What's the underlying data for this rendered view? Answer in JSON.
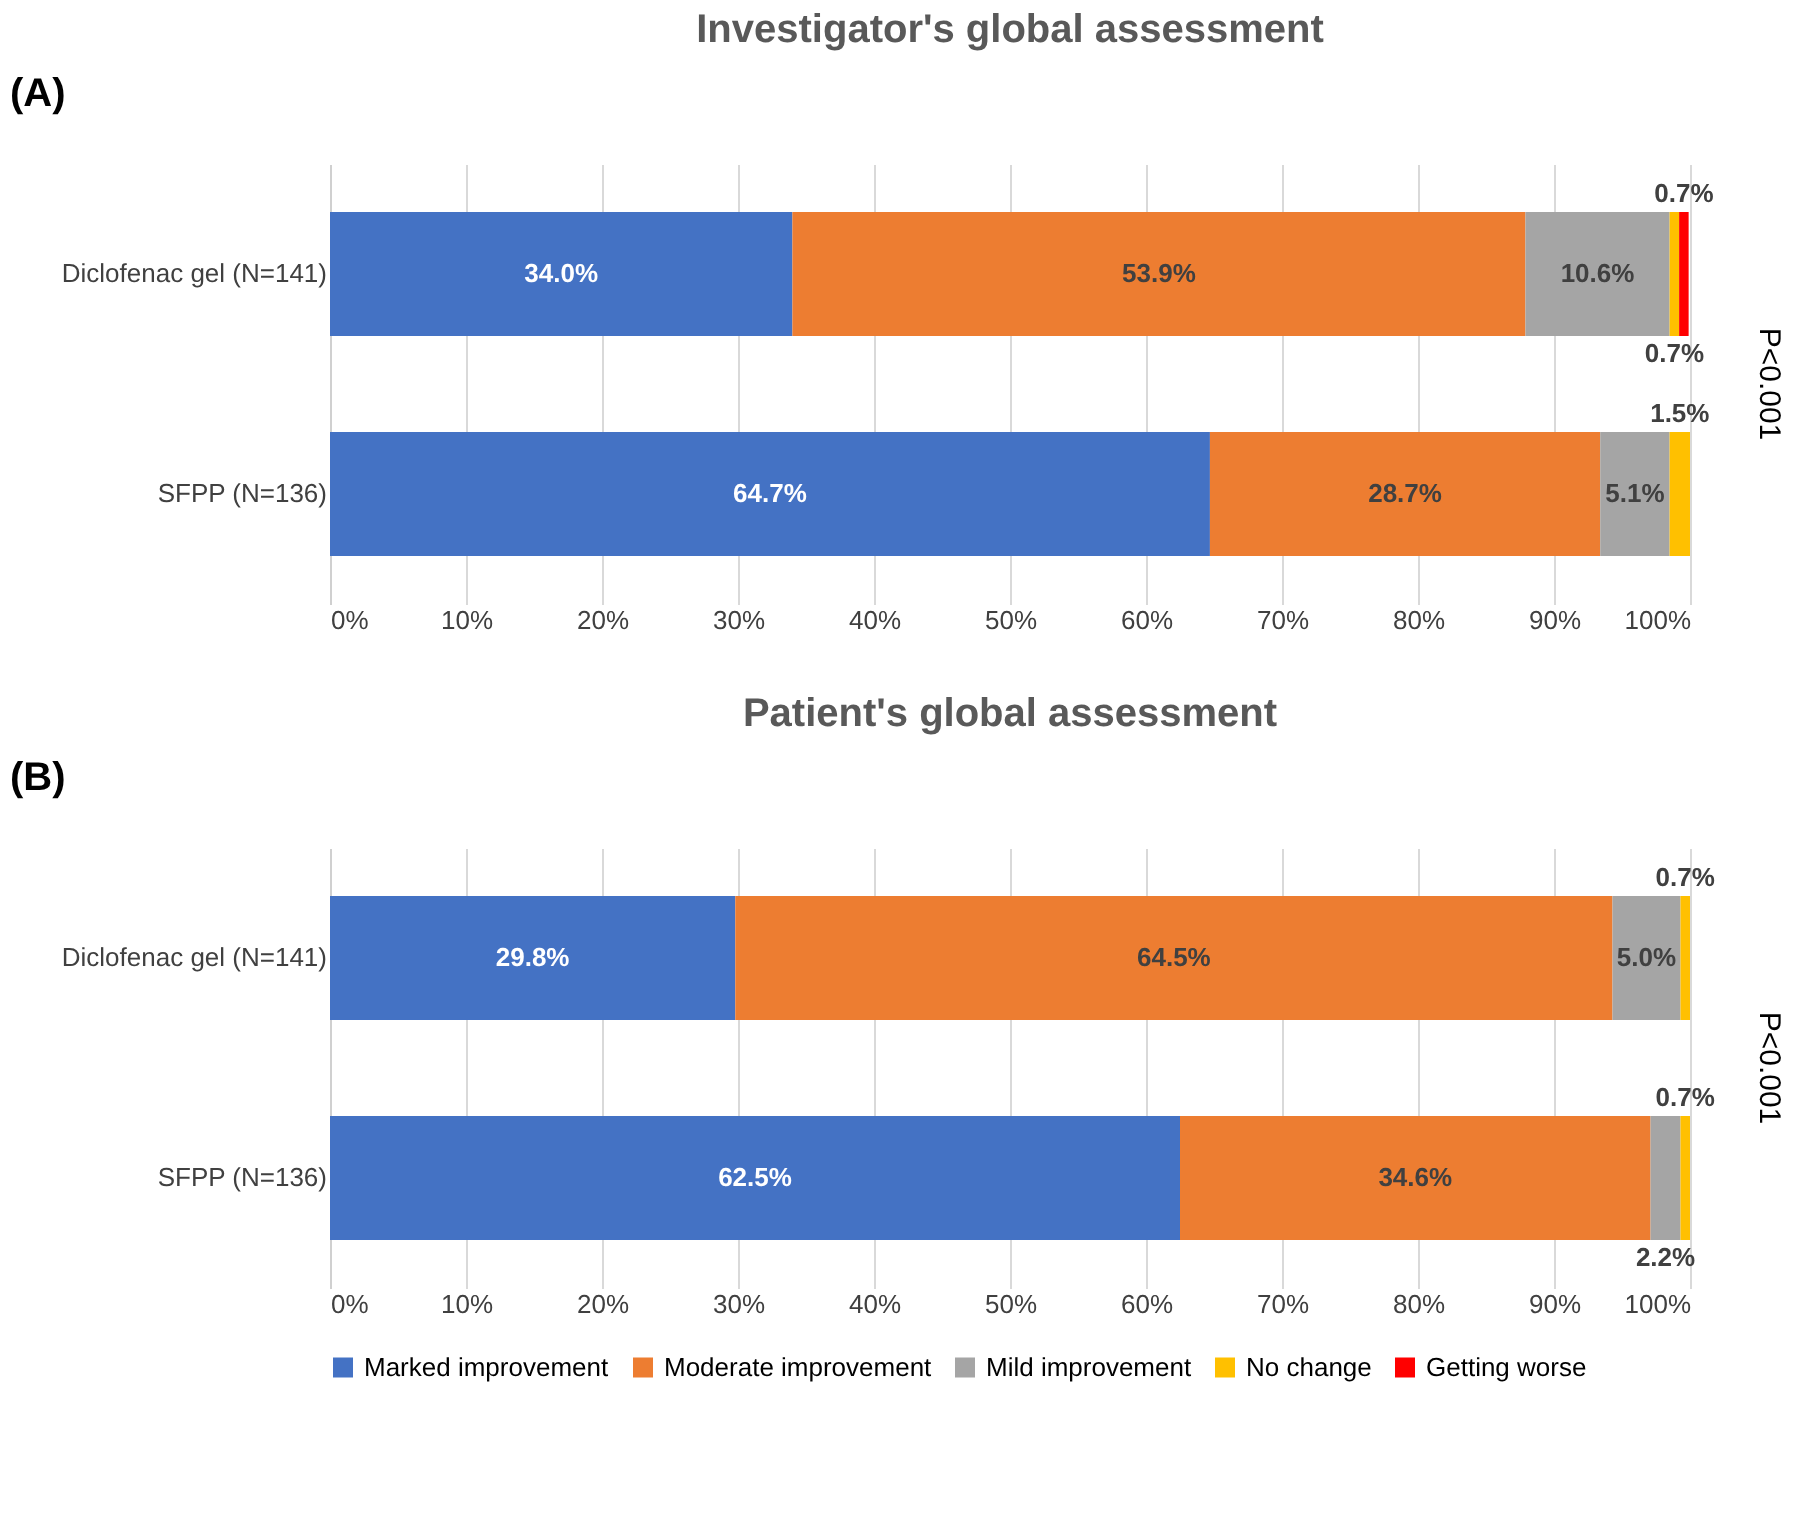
{
  "chart_data": [
    {
      "type": "bar",
      "orientation": "horizontal",
      "stacked": true,
      "title": "Investigator's global assessment",
      "categories": [
        "Diclofenac gel (N=141)",
        "SFPP (N=136)"
      ],
      "xlim": [
        0,
        100
      ],
      "xticks": [
        {
          "value": 0,
          "label": "0%"
        },
        {
          "value": 10,
          "label": "10%"
        },
        {
          "value": 20,
          "label": "20%"
        },
        {
          "value": 30,
          "label": "30%"
        },
        {
          "value": 40,
          "label": "40%"
        },
        {
          "value": 50,
          "label": "50%"
        },
        {
          "value": 60,
          "label": "60%"
        },
        {
          "value": 70,
          "label": "70%"
        },
        {
          "value": 80,
          "label": "80%"
        },
        {
          "value": 90,
          "label": "90%"
        },
        {
          "value": 100,
          "label": "100%"
        }
      ],
      "grid": "x",
      "legend": false,
      "annotations": [
        "(A)",
        "P<0.001"
      ],
      "series": [
        {
          "color": "#4472c4",
          "values": [
            34.0,
            64.7
          ],
          "value_labels": [
            "34.0%",
            "64.7%"
          ]
        },
        {
          "color": "#ed7d31",
          "values": [
            53.9,
            28.7
          ],
          "value_labels": [
            "53.9%",
            "28.7%"
          ]
        },
        {
          "color": "#a5a5a5",
          "values": [
            10.6,
            5.1
          ],
          "value_labels": [
            "10.6%",
            "5.1%"
          ]
        },
        {
          "color": "#ffc000",
          "values": [
            0.7,
            1.5
          ],
          "value_labels": [
            "0.7%",
            "1.5%"
          ]
        },
        {
          "color": "#ff0000",
          "values": [
            0.7,
            null
          ],
          "value_labels": [
            "0.7%",
            null
          ]
        }
      ]
    },
    {
      "type": "bar",
      "orientation": "horizontal",
      "stacked": true,
      "title": "Patient's global assessment",
      "categories": [
        "Diclofenac gel (N=141)",
        "SFPP (N=136)"
      ],
      "xlim": [
        0,
        100
      ],
      "xticks": [
        {
          "value": 0,
          "label": "0%"
        },
        {
          "value": 10,
          "label": "10%"
        },
        {
          "value": 20,
          "label": "20%"
        },
        {
          "value": 30,
          "label": "30%"
        },
        {
          "value": 40,
          "label": "40%"
        },
        {
          "value": 50,
          "label": "50%"
        },
        {
          "value": 60,
          "label": "60%"
        },
        {
          "value": 70,
          "label": "70%"
        },
        {
          "value": 80,
          "label": "80%"
        },
        {
          "value": 90,
          "label": "90%"
        },
        {
          "value": 100,
          "label": "100%"
        }
      ],
      "grid": "x",
      "legend": "bottom",
      "annotations": [
        "(B)",
        "P<0.001"
      ],
      "series": [
        {
          "name": "Marked improvement",
          "color": "#4472c4",
          "values": [
            29.8,
            62.5
          ],
          "value_labels": [
            "29.8%",
            "62.5%"
          ]
        },
        {
          "name": "Moderate improvement",
          "color": "#ed7d31",
          "values": [
            64.5,
            34.6
          ],
          "value_labels": [
            "64.5%",
            "34.6%"
          ]
        },
        {
          "name": "Mild improvement",
          "color": "#a5a5a5",
          "values": [
            5.0,
            2.2
          ],
          "value_labels": [
            "5.0%",
            "2.2%"
          ]
        },
        {
          "name": "No change",
          "color": "#ffc000",
          "values": [
            0.7,
            0.7
          ],
          "value_labels": [
            "0.7%",
            "0.7%"
          ]
        },
        {
          "name": "Getting worse",
          "color": "#ff0000",
          "values": [
            null,
            null
          ]
        }
      ]
    }
  ]
}
